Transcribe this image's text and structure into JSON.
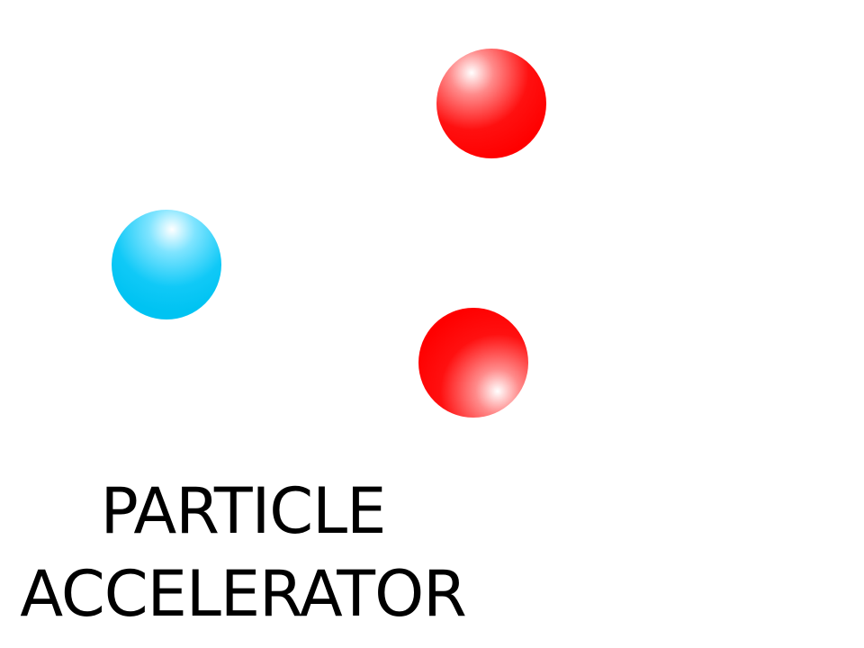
{
  "title": {
    "line1": "PARTICLE",
    "line2": "ACCELERATOR"
  },
  "particles": [
    {
      "name": "blue-particle",
      "color": "#00c8f5"
    },
    {
      "name": "red-particle-top",
      "color": "#ff0000"
    },
    {
      "name": "red-particle-bottom",
      "color": "#ff0000"
    }
  ]
}
